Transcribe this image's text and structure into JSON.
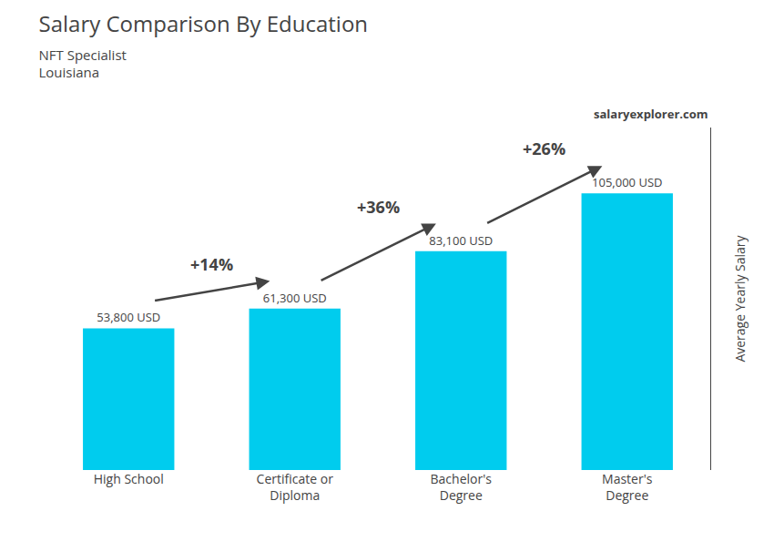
{
  "chart_data": {
    "type": "bar",
    "title": "Salary Comparison By Education",
    "subtitle": [
      "NFT Specialist",
      "Louisiana"
    ],
    "watermark": [
      "salary",
      "explorer",
      ".com"
    ],
    "ylabel": "Average Yearly Salary",
    "categories": [
      "High School",
      "Certificate or\nDiploma",
      "Bachelor's\nDegree",
      "Master's\nDegree"
    ],
    "values": [
      53800,
      61300,
      83100,
      105000
    ],
    "value_labels": [
      "53,800 USD",
      "61,300 USD",
      "83,100 USD",
      "105,000 USD"
    ],
    "data_labels": true,
    "annotations": [
      "+14%",
      "+36%",
      "+26%"
    ],
    "color": "#00ccee",
    "ylim": [
      0,
      130000
    ],
    "tick_labels": "x",
    "grid": false
  }
}
